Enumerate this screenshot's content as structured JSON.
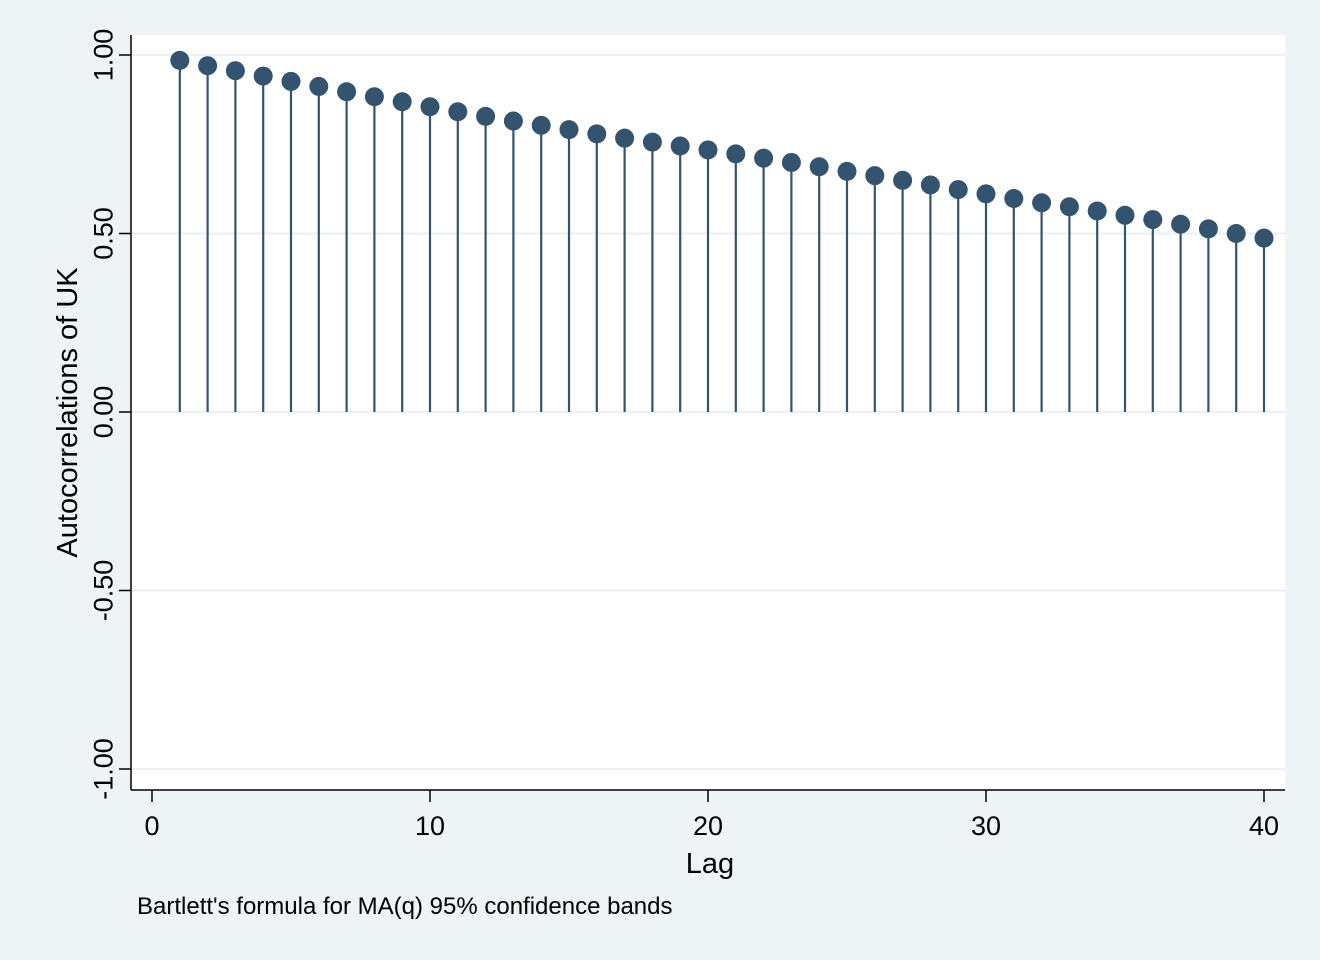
{
  "chart_data": {
    "type": "scatter",
    "style": "stem",
    "ylabel": "Autocorrelations of UK",
    "xlabel": "Lag",
    "note": "Bartlett's formula for MA(q) 95% confidence bands",
    "xlim": [
      0,
      40
    ],
    "ylim": [
      -1,
      1
    ],
    "xticks": [
      "0",
      "10",
      "20",
      "30",
      "40"
    ],
    "yticks": [
      "-1.00",
      "-0.50",
      "0.00",
      "0.50",
      "1.00"
    ],
    "grid": true,
    "legend": "none",
    "colors": {
      "marker": "#34536f",
      "stem": "#34536f",
      "plot_bg": "#ffffff",
      "page_bg": "#eef3f6",
      "grid": "#eaf0f4"
    },
    "series": [
      {
        "x": [
          1,
          2,
          3,
          4,
          5,
          6,
          7,
          8,
          9,
          10,
          11,
          12,
          13,
          14,
          15,
          16,
          17,
          18,
          19,
          20,
          21,
          22,
          23,
          24,
          25,
          26,
          27,
          28,
          29,
          30,
          31,
          32,
          33,
          34,
          35,
          36,
          37,
          38,
          39,
          40
        ],
        "values": [
          0.985,
          0.97,
          0.956,
          0.941,
          0.926,
          0.912,
          0.897,
          0.883,
          0.869,
          0.855,
          0.841,
          0.828,
          0.815,
          0.803,
          0.791,
          0.779,
          0.767,
          0.756,
          0.745,
          0.734,
          0.723,
          0.711,
          0.699,
          0.687,
          0.674,
          0.662,
          0.649,
          0.636,
          0.623,
          0.611,
          0.598,
          0.586,
          0.575,
          0.563,
          0.551,
          0.539,
          0.526,
          0.513,
          0.5,
          0.487
        ]
      }
    ]
  }
}
